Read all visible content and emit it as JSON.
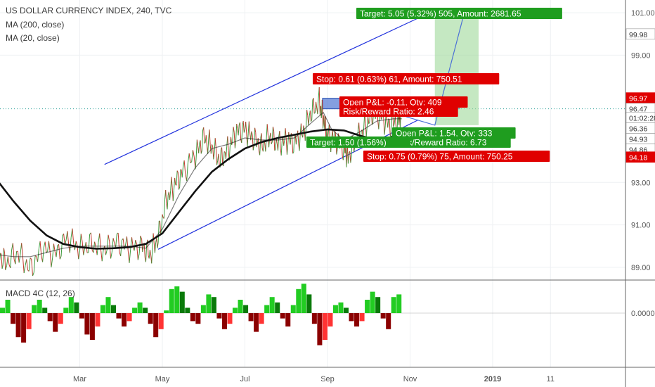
{
  "header": {
    "symbol": "US DOLLAR CURRENCY INDEX, 240, TVC",
    "ma200": "MA (200, close)",
    "ma20": "MA (20, close)"
  },
  "macd": {
    "label": "MACD 4C (12, 26)",
    "zero_label": "0.0000"
  },
  "chart_data": {
    "type": "line",
    "title": "US DOLLAR CURRENCY INDEX, 240, TVC",
    "ylim": [
      88.4,
      101.6
    ],
    "y_ticks": [
      {
        "v": 89.0,
        "label": "89.00"
      },
      {
        "v": 91.0,
        "label": "91.00"
      },
      {
        "v": 93.0,
        "label": "93.00"
      },
      {
        "v": 99.0,
        "label": "99.00"
      },
      {
        "v": 101.0,
        "label": "101.00"
      }
    ],
    "x_ticks": [
      "Mar",
      "May",
      "Jul",
      "Sep",
      "Nov",
      "2019",
      "11"
    ],
    "x_tick_t": [
      1.0,
      2.0,
      3.0,
      4.0,
      5.0,
      6.0,
      6.7
    ],
    "price_series": [
      [
        0.0,
        89.8
      ],
      [
        0.1,
        89.2
      ],
      [
        0.25,
        89.7
      ],
      [
        0.4,
        88.9
      ],
      [
        0.55,
        89.9
      ],
      [
        0.7,
        89.6
      ],
      [
        0.85,
        90.4
      ],
      [
        1.0,
        89.9
      ],
      [
        1.15,
        90.1
      ],
      [
        1.3,
        89.8
      ],
      [
        1.45,
        90.2
      ],
      [
        1.6,
        89.9
      ],
      [
        1.75,
        90.0
      ],
      [
        1.85,
        89.6
      ],
      [
        1.95,
        90.4
      ],
      [
        2.05,
        92.2
      ],
      [
        2.15,
        92.9
      ],
      [
        2.25,
        93.5
      ],
      [
        2.4,
        94.3
      ],
      [
        2.5,
        95.1
      ],
      [
        2.6,
        94.7
      ],
      [
        2.7,
        94.0
      ],
      [
        2.8,
        94.6
      ],
      [
        2.9,
        95.4
      ],
      [
        3.0,
        95.5
      ],
      [
        3.1,
        95.1
      ],
      [
        3.2,
        94.7
      ],
      [
        3.3,
        95.2
      ],
      [
        3.4,
        94.8
      ],
      [
        3.5,
        95.0
      ],
      [
        3.6,
        94.9
      ],
      [
        3.7,
        95.3
      ],
      [
        3.8,
        96.3
      ],
      [
        3.9,
        96.8
      ],
      [
        3.95,
        96.0
      ],
      [
        4.0,
        95.2
      ],
      [
        4.1,
        95.0
      ],
      [
        4.2,
        94.6
      ],
      [
        4.25,
        94.2
      ],
      [
        4.35,
        95.0
      ],
      [
        4.45,
        95.6
      ],
      [
        4.55,
        96.3
      ],
      [
        4.65,
        96.1
      ],
      [
        4.75,
        95.7
      ],
      [
        4.85,
        95.9
      ],
      [
        4.9,
        96.2
      ]
    ],
    "series": [
      {
        "name": "MA (200, close)",
        "values": [
          [
            0.0,
            93.1
          ],
          [
            0.2,
            92.1
          ],
          [
            0.4,
            91.2
          ],
          [
            0.6,
            90.5
          ],
          [
            0.8,
            90.1
          ],
          [
            1.0,
            89.95
          ],
          [
            1.2,
            89.88
          ],
          [
            1.4,
            89.9
          ],
          [
            1.6,
            89.95
          ],
          [
            1.8,
            90.1
          ],
          [
            2.0,
            90.6
          ],
          [
            2.2,
            91.6
          ],
          [
            2.4,
            92.6
          ],
          [
            2.6,
            93.5
          ],
          [
            2.8,
            94.1
          ],
          [
            3.0,
            94.6
          ],
          [
            3.2,
            94.9
          ],
          [
            3.4,
            95.1
          ],
          [
            3.6,
            95.25
          ],
          [
            3.8,
            95.4
          ],
          [
            4.0,
            95.5
          ],
          [
            4.2,
            95.45
          ],
          [
            4.4,
            95.2
          ],
          [
            4.6,
            95.0
          ],
          [
            4.75,
            95.1
          ],
          [
            4.9,
            95.4
          ]
        ]
      },
      {
        "name": "MA (20, close)",
        "values": [
          [
            0.0,
            89.6
          ],
          [
            0.2,
            89.5
          ],
          [
            0.4,
            89.5
          ],
          [
            0.6,
            89.7
          ],
          [
            0.8,
            89.9
          ],
          [
            1.0,
            90.0
          ],
          [
            1.2,
            90.0
          ],
          [
            1.4,
            90.0
          ],
          [
            1.6,
            90.0
          ],
          [
            1.8,
            89.9
          ],
          [
            2.0,
            90.8
          ],
          [
            2.2,
            92.4
          ],
          [
            2.4,
            93.7
          ],
          [
            2.6,
            94.6
          ],
          [
            2.8,
            94.8
          ],
          [
            3.0,
            95.1
          ],
          [
            3.2,
            95.0
          ],
          [
            3.4,
            95.0
          ],
          [
            3.6,
            95.1
          ],
          [
            3.8,
            95.8
          ],
          [
            3.95,
            96.3
          ],
          [
            4.05,
            95.5
          ],
          [
            4.2,
            95.0
          ],
          [
            4.4,
            95.4
          ],
          [
            4.6,
            95.9
          ],
          [
            4.8,
            96.0
          ],
          [
            4.9,
            96.0
          ]
        ]
      }
    ],
    "channel": [
      {
        "from": [
          1.3,
          93.85
        ],
        "to": [
          5.1,
          100.75
        ]
      },
      {
        "from": [
          1.95,
          89.85
        ],
        "to": [
          5.1,
          95.95
        ]
      }
    ],
    "boxes": [
      {
        "name": "short-position",
        "t0": 3.94,
        "t1": 5.6,
        "y_low": 96.47,
        "y_high": 96.97,
        "color": "#5b7fd6"
      },
      {
        "name": "long-target-zone",
        "t0": 5.3,
        "t1": 5.83,
        "y_low": 95.7,
        "y_high": 100.9,
        "color": "#9fd89a"
      }
    ],
    "projection": [
      [
        4.95,
        96.1
      ],
      [
        5.3,
        95.7
      ],
      [
        5.65,
        100.9
      ]
    ],
    "price_labels": [
      {
        "text": "99.98",
        "v": 99.98,
        "bg": "#ffffff",
        "fg": "#333333"
      },
      {
        "text": "96.97",
        "v": 96.97,
        "bg": "#e00000",
        "fg": "#ffffff"
      },
      {
        "text": "96.47",
        "v": 96.47,
        "bg": "#ffffff",
        "fg": "#333333"
      },
      {
        "text": "01:02:28",
        "v": 96.05,
        "bg": "#ffffff",
        "fg": "#333333"
      },
      {
        "text": "96.36",
        "v": 95.55,
        "bg": "#ffffff",
        "fg": "#333333"
      },
      {
        "text": "94.93",
        "v": 95.05,
        "bg": "#ffffff",
        "fg": "#333333"
      },
      {
        "text": "94.86",
        "v": 94.55,
        "bg": "#ffffff",
        "fg": "#333333"
      },
      {
        "text": "94.18",
        "v": 94.18,
        "bg": "#e00000",
        "fg": "#ffffff"
      }
    ],
    "annotations": [
      {
        "text": "Target: 5.05 (5.32%) 505, Amount: 2681.65",
        "kind": "target",
        "cx": 0.78,
        "row": 0
      },
      {
        "text": "Stop: 0.61 (0.63%) 61, Amount: 750.51",
        "kind": "stop",
        "cx": 0.48,
        "row": 1
      },
      {
        "text": "Open P&L: -0.11, Qty: 409",
        "kind": "pnl",
        "cx": 0.5,
        "row": 2
      },
      {
        "text": "Risk/Reward Ratio: 2.46",
        "kind": "pnl",
        "cx": 0.5,
        "row": 3
      },
      {
        "text": "Open P&L: 1.54, Qty: 333",
        "kind": "pnl_long",
        "cx": 0.5,
        "row": 4
      },
      {
        "text": "Risk/Reward Ratio: 6.73",
        "kind": "pnl_long",
        "cx": 0.5,
        "row": 5
      },
      {
        "text": "Target: 1.50 (1.56%)",
        "kind": "target",
        "cx": 0.5,
        "row": 6
      },
      {
        "text": "Stop: 0.75 (0.79%) 75, Amount: 750.25",
        "kind": "stop",
        "cx": 0.5,
        "row": 7
      }
    ],
    "macd_hist": [
      0.2,
      0.5,
      -0.4,
      -0.9,
      -1.1,
      -0.6,
      0.3,
      0.5,
      0.2,
      -0.3,
      -0.7,
      -0.4,
      0.2,
      0.6,
      0.4,
      -0.2,
      -0.8,
      -1.0,
      -0.5,
      0.3,
      0.6,
      0.3,
      -0.2,
      -0.5,
      -0.3,
      0.2,
      0.4,
      0.2,
      -0.4,
      -0.9,
      -0.6,
      0.1,
      0.9,
      1.0,
      0.8,
      0.2,
      -0.3,
      -0.4,
      0.3,
      0.7,
      0.6,
      -0.2,
      -0.6,
      -0.4,
      0.2,
      0.5,
      0.3,
      -0.3,
      -0.7,
      -0.4,
      0.3,
      0.6,
      0.4,
      -0.2,
      -0.5,
      0.3,
      0.9,
      1.1,
      0.7,
      -0.4,
      -1.2,
      -1.0,
      -0.5,
      0.3,
      0.4,
      0.2,
      -0.3,
      -0.5,
      -0.3,
      0.5,
      0.8,
      0.6,
      -0.2,
      -0.6,
      0.6,
      0.7
    ]
  }
}
